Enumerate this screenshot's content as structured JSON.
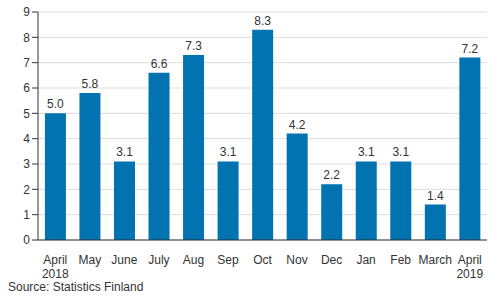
{
  "chart_data": {
    "type": "bar",
    "categories": [
      "April 2018",
      "May",
      "June",
      "July",
      "Aug",
      "Sep",
      "Oct",
      "Nov",
      "Dec",
      "Jan",
      "Feb",
      "March",
      "April 2019"
    ],
    "values": [
      5.0,
      5.8,
      3.1,
      6.6,
      7.3,
      3.1,
      8.3,
      4.2,
      2.2,
      3.1,
      3.1,
      1.4,
      7.2
    ],
    "value_labels": [
      "5.0",
      "5.8",
      "3.1",
      "6.6",
      "7.3",
      "3.1",
      "8.3",
      "4.2",
      "2.2",
      "3.1",
      "3.1",
      "1.4",
      "7.2"
    ],
    "color": "#0073b0",
    "ylim": [
      0,
      9
    ],
    "yticks": [
      0,
      1,
      2,
      3,
      4,
      5,
      6,
      7,
      8,
      9
    ],
    "grid": true,
    "data_labels": true,
    "source": "Source: Statistics Finland"
  }
}
